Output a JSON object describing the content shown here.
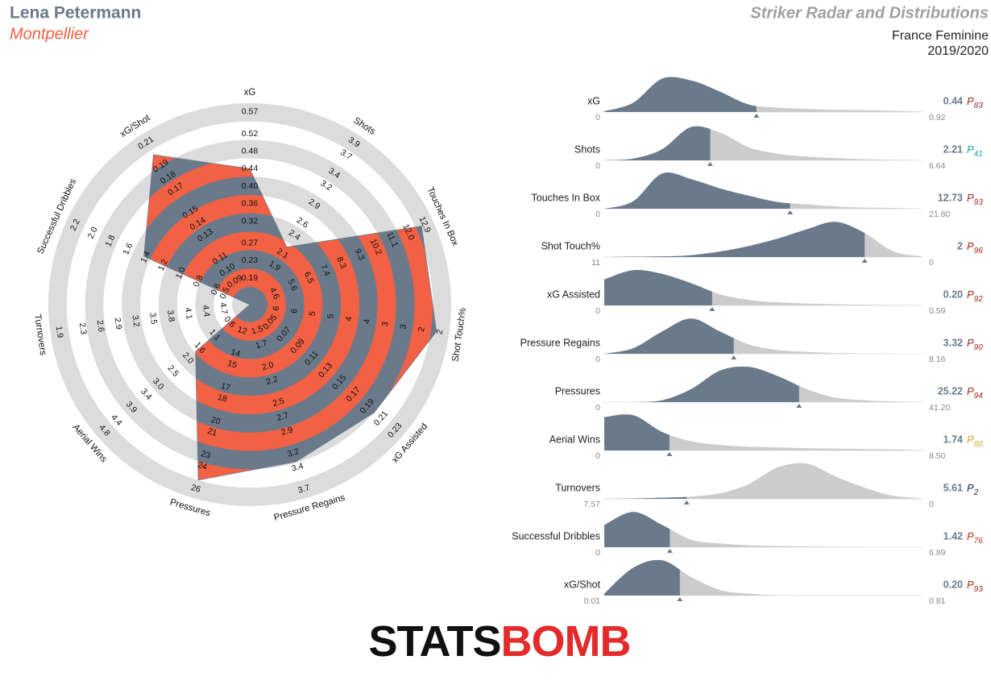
{
  "header": {
    "player": "Lena Petermann",
    "team": "Montpellier",
    "title": "Striker Radar and Distributions",
    "league": "France Feminine",
    "season": "2019/2020"
  },
  "logo": [
    "STATS",
    "BOMB"
  ],
  "chart_data": [
    {
      "type": "radar",
      "categories": [
        "xG",
        "Shots",
        "Touches In Box",
        "Shot Touch%",
        "xG Assisted",
        "Pressure Regains",
        "Pressures",
        "Aerial Wins",
        "Turnovers",
        "Successful Dribbles",
        "xG/Shot"
      ],
      "values": [
        0.44,
        2.21,
        12.73,
        2,
        0.2,
        3.32,
        25.22,
        1.74,
        5.61,
        1.42,
        0.2
      ],
      "colors": [
        "#f26143",
        "#6b7a8b"
      ],
      "axes": [
        {
          "lim": [
            0.17,
            0.59
          ],
          "ticks": [
            0.19,
            0.23,
            0.27,
            0.32,
            0.36,
            {
              "value": 0.4,
              "label": "0.40"
            },
            0.44,
            0.48,
            0.52,
            0.57
          ]
        },
        {
          "lim": [
            1.52,
            4.02
          ],
          "ticks": [
            1.9,
            2.1,
            2.4,
            2.6,
            2.9,
            3.2,
            3.4,
            3.7,
            3.9
          ]
        },
        {
          "lim": [
            4.14,
            13.36
          ],
          "ticks": [
            4.6,
            5.6,
            6.5,
            7.4,
            8.3,
            9.3,
            10.2,
            11.1,
            {
              "value": 12,
              "label": "12.0"
            },
            12.9
          ]
        },
        {
          "lim": [
            6.65,
            1.65
          ],
          "ticks": [
            {
              "value": 6.4,
              "label": "6"
            },
            {
              "value": 5.9,
              "label": "6"
            },
            {
              "value": 5.4,
              "label": "5"
            },
            {
              "value": 4.9,
              "label": "5"
            },
            {
              "value": 4.4,
              "label": "4"
            },
            {
              "value": 3.9,
              "label": "4"
            },
            {
              "value": 3.4,
              "label": "3"
            },
            {
              "value": 2.9,
              "label": "3"
            },
            {
              "value": 2.4,
              "label": "2"
            },
            {
              "value": 1.9,
              "label": "2"
            }
          ]
        },
        {
          "lim": [
            0.04,
            0.24
          ],
          "ticks": [
            0.05,
            0.07,
            0.09,
            0.11,
            0.13,
            0.15,
            0.17,
            0.19,
            0.21,
            0.23
          ]
        },
        {
          "lim": [
            1.38,
            3.82
          ],
          "ticks": [
            1.5,
            1.7,
            {
              "value": 2,
              "label": "2.0"
            },
            2.2,
            2.5,
            2.7,
            2.9,
            3.2,
            3.4,
            3.7
          ]
        },
        {
          "lim": [
            11.2,
            26.8
          ],
          "ticks": [
            12,
            14,
            15,
            17,
            18,
            20,
            21,
            23,
            24,
            26
          ]
        },
        {
          "lim": [
            0.37,
            5.03
          ],
          "ticks": [
            0.6,
            1.1,
            1.6,
            {
              "value": 2,
              "label": "2.0"
            },
            2.5,
            {
              "value": 3,
              "label": "3.0"
            },
            3.4,
            3.9,
            4.4,
            4.8
          ]
        },
        {
          "lim": [
            4.85,
            1.75
          ],
          "ticks": [
            4.7,
            4.4,
            4.1,
            3.8,
            3.5,
            3.2,
            2.9,
            2.6,
            2.3,
            1.9
          ]
        },
        {
          "lim": [
            0.4,
            2.3
          ],
          "ticks": [
            0.5,
            0.6,
            0.8,
            {
              "value": 1,
              "label": "1.0"
            },
            1.2,
            1.4,
            1.6,
            1.8,
            {
              "value": 2,
              "label": "2.0"
            },
            2.2
          ]
        },
        {
          "lim": [
            0.083,
            0.217
          ],
          "ticks": [
            0.09,
            {
              "value": 0.1,
              "label": "0.10"
            },
            0.11,
            0.13,
            0.14,
            0.15,
            0.17,
            0.18,
            0.19,
            0.21
          ]
        }
      ]
    },
    {
      "type": "distribution",
      "percentile_symbol": "P",
      "colors": [
        "#6b7a8b",
        "#cccccc"
      ],
      "rows": [
        {
          "name": "xG",
          "xlim": [
            0,
            0.92
          ],
          "xticks": [
            0,
            0.92
          ],
          "value": 0.44,
          "percentile": 83,
          "percentile_color": "#a3261a",
          "density": [
            0.02,
            0.25,
            0.9,
            0.85,
            0.55,
            0.2,
            0.12,
            0.08,
            0.06,
            0.05,
            0.03,
            0.01
          ]
        },
        {
          "name": "Shots",
          "xlim": [
            0,
            6.64
          ],
          "xticks": [
            0,
            6.64
          ],
          "value": 2.21,
          "percentile": 41,
          "percentile_color": "#1ba3b3",
          "density": [
            0,
            0.05,
            0.3,
            0.9,
            0.75,
            0.35,
            0.18,
            0.1,
            0.06,
            0.03,
            0.01,
            0
          ]
        },
        {
          "name": "Touches In Box",
          "xlim": [
            0,
            21.8
          ],
          "xticks": [
            0,
            {
              "value": 21.8,
              "label": "21.80"
            }
          ],
          "value": 12.73,
          "percentile": 93,
          "percentile_color": "#a3261a",
          "density": [
            0,
            0.2,
            0.95,
            0.8,
            0.55,
            0.35,
            0.18,
            0.12,
            0.06,
            0.03,
            0.02,
            0
          ]
        },
        {
          "name": "Shot Touch%",
          "xlim": [
            11,
            0
          ],
          "xticks": [
            11,
            0
          ],
          "value": 2,
          "percentile": 96,
          "percentile_color": "#a3261a",
          "density": [
            0,
            0.01,
            0.02,
            0.05,
            0.15,
            0.3,
            0.5,
            0.75,
            0.95,
            0.65,
            0.15,
            0.02
          ]
        },
        {
          "name": "xG Assisted",
          "xlim": [
            0,
            0.59
          ],
          "xticks": [
            0,
            0.59
          ],
          "value": 0.2,
          "value_label": "0.20",
          "percentile": 92,
          "percentile_color": "#a3261a",
          "density": [
            0.7,
            0.95,
            0.85,
            0.6,
            0.3,
            0.15,
            0.08,
            0.05,
            0.03,
            0.02,
            0.01,
            0
          ]
        },
        {
          "name": "Pressure Regains",
          "xlim": [
            0,
            8.16
          ],
          "xticks": [
            0,
            8.16
          ],
          "value": 3.32,
          "percentile": 90,
          "percentile_color": "#a3261a",
          "density": [
            0,
            0.15,
            0.6,
            0.95,
            0.6,
            0.25,
            0.1,
            0.05,
            0.02,
            0.01,
            0,
            0
          ]
        },
        {
          "name": "Pressures",
          "xlim": [
            0,
            41.2
          ],
          "xticks": [
            0,
            {
              "value": 41.2,
              "label": "41.20"
            }
          ],
          "value": 25.22,
          "percentile": 94,
          "percentile_color": "#a3261a",
          "density": [
            0,
            0,
            0.05,
            0.35,
            0.85,
            0.95,
            0.7,
            0.35,
            0.12,
            0.05,
            0.02,
            0
          ]
        },
        {
          "name": "Aerial Wins",
          "xlim": [
            0,
            8.5
          ],
          "xticks": [
            0,
            {
              "value": 8.5,
              "label": "8.50"
            }
          ],
          "value": 1.74,
          "percentile": 60,
          "percentile_color": "#d9a21b",
          "density": [
            0.9,
            0.95,
            0.5,
            0.25,
            0.15,
            0.1,
            0.08,
            0.06,
            0.05,
            0.04,
            0.03,
            0.01
          ]
        },
        {
          "name": "Turnovers",
          "xlim": [
            7.57,
            0
          ],
          "xticks": [
            7.57,
            0
          ],
          "value": 5.61,
          "percentile": 2,
          "percentile_color": "#1b2a6b",
          "density": [
            0,
            0.01,
            0.03,
            0.06,
            0.15,
            0.4,
            0.85,
            0.95,
            0.6,
            0.3,
            0.08,
            0.01
          ]
        },
        {
          "name": "Successful Dribbles",
          "xlim": [
            0,
            6.89
          ],
          "xticks": [
            0,
            6.89
          ],
          "value": 1.42,
          "percentile": 76,
          "percentile_color": "#b5301a",
          "density": [
            0.6,
            0.95,
            0.6,
            0.2,
            0.1,
            0.05,
            0.03,
            0.02,
            0.01,
            0,
            0,
            0
          ]
        },
        {
          "name": "xG/Shot",
          "xlim": [
            0.01,
            0.81
          ],
          "xticks": [
            0.01,
            0.81
          ],
          "value": 0.2,
          "value_label": "0.20",
          "percentile": 93,
          "percentile_color": "#a3261a",
          "density": [
            0.05,
            0.75,
            0.95,
            0.5,
            0.15,
            0.05,
            0.01,
            0,
            0,
            0,
            0,
            0
          ]
        }
      ]
    }
  ]
}
